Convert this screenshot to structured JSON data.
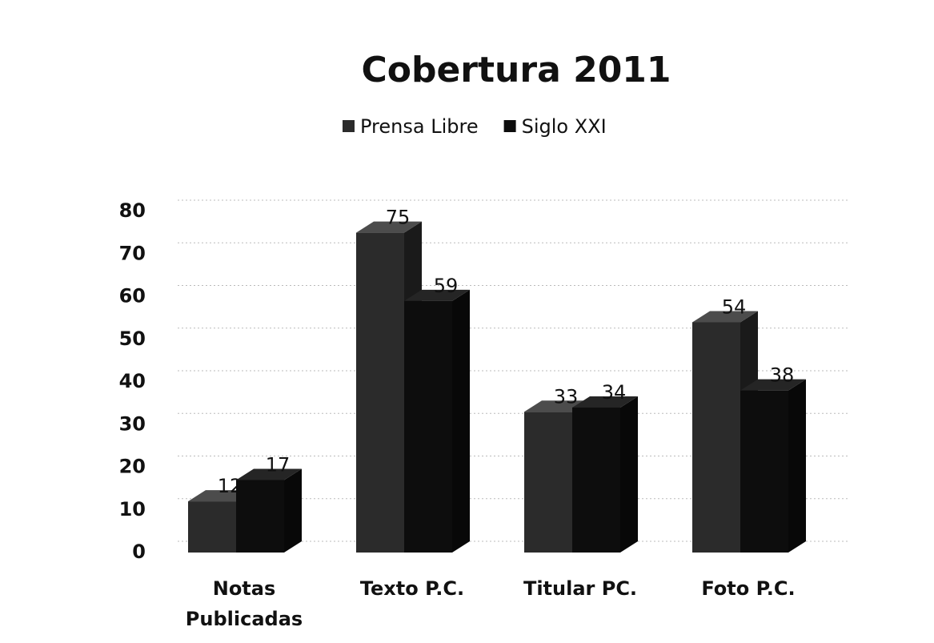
{
  "chart_data": {
    "type": "bar3d",
    "title": "Cobertura 2011",
    "categories": [
      "Notas Publicadas",
      "Texto P.C.",
      "Titular PC.",
      "Foto P.C."
    ],
    "series": [
      {
        "name": "Prensa Libre",
        "color": "#2b2b2b",
        "values": [
          12,
          75,
          33,
          54
        ]
      },
      {
        "name": "Siglo XXI",
        "color": "#0d0d0d",
        "values": [
          17,
          59,
          34,
          38
        ]
      }
    ],
    "ylim": [
      0,
      80
    ],
    "yticks": [
      0,
      10,
      20,
      30,
      40,
      50,
      60,
      70,
      80
    ],
    "grid": true,
    "legend": "top"
  }
}
